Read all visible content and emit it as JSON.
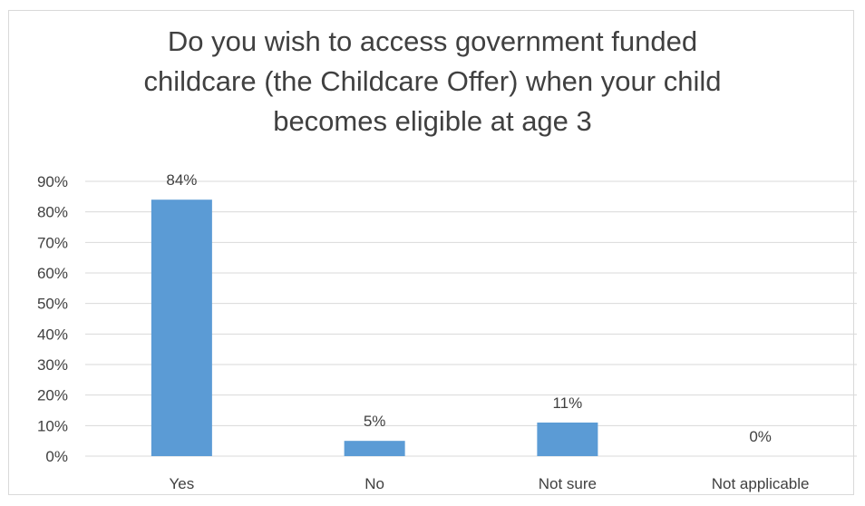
{
  "chart_data": {
    "type": "bar",
    "title_lines": [
      "Do you wish to access government funded",
      "childcare (the Childcare Offer) when your child",
      "becomes eligible at age 3"
    ],
    "categories": [
      "Yes",
      "No",
      "Not sure",
      "Not applicable"
    ],
    "values": [
      84,
      5,
      11,
      0
    ],
    "data_labels": [
      "84%",
      "5%",
      "11%",
      "0%"
    ],
    "y_ticks": [
      "0%",
      "10%",
      "20%",
      "30%",
      "40%",
      "50%",
      "60%",
      "70%",
      "80%",
      "90%"
    ],
    "ylim": [
      0,
      90
    ],
    "xlabel": "",
    "ylabel": "",
    "grid": true,
    "legend": "none",
    "colors": {
      "bar": "#5b9bd5",
      "grid": "#d9d9d9",
      "text": "#404040",
      "border": "#d9d9d9"
    }
  }
}
